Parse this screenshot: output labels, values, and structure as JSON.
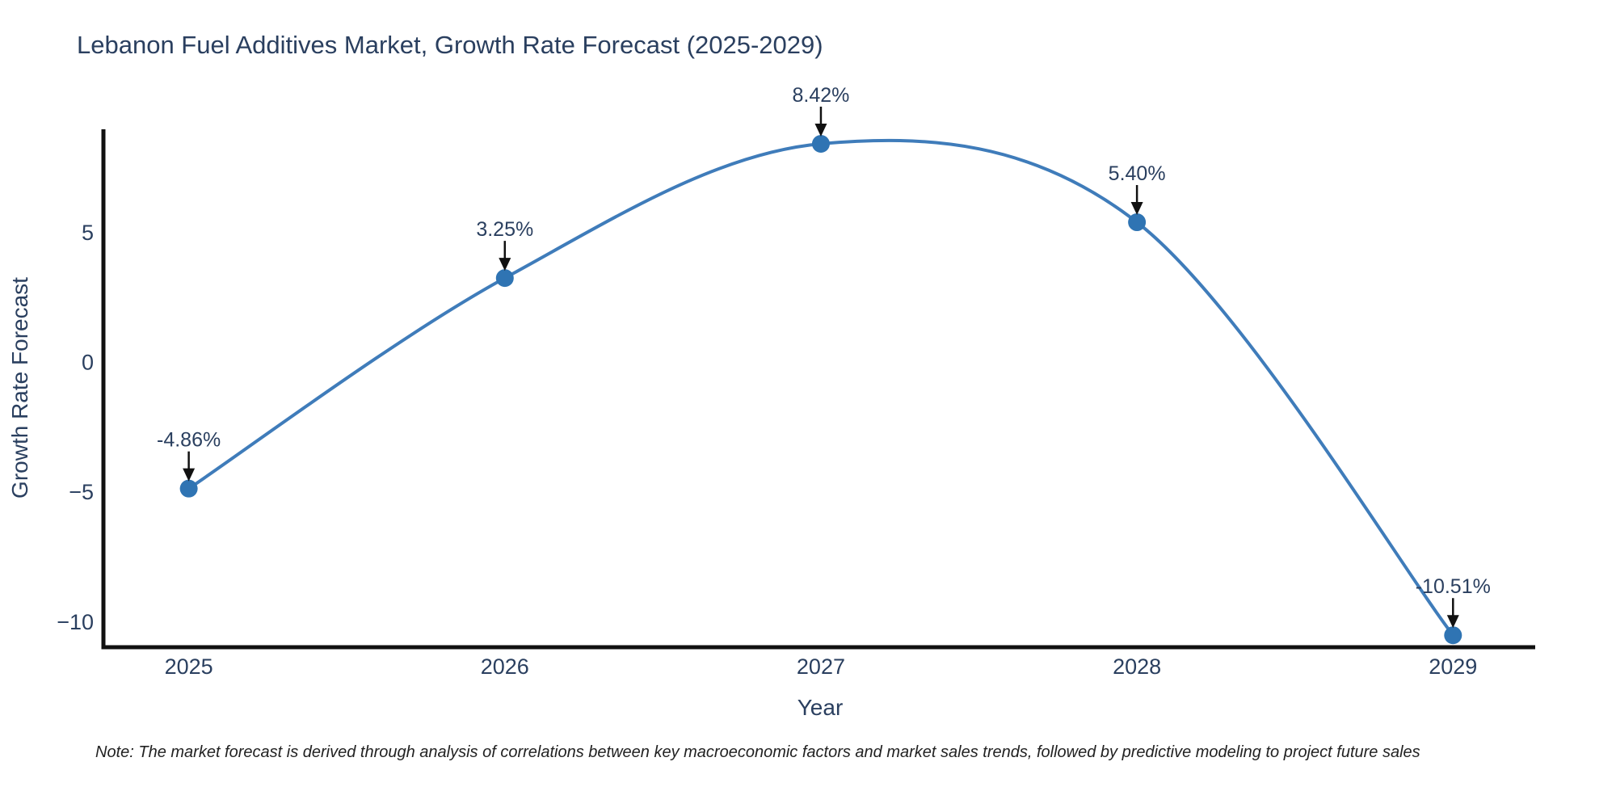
{
  "title": "Lebanon Fuel Additives Market, Growth Rate Forecast (2025-2029)",
  "note": "Note: The market forecast is derived through analysis of correlations between key macroeconomic factors and market sales trends, followed by predictive modeling to project future sales",
  "chart_data": {
    "type": "line",
    "line_shape": "spline",
    "title": "Lebanon Fuel Additives Market, Growth Rate Forecast (2025-2029)",
    "xlabel": "Year",
    "ylabel": "Growth Rate Forecast",
    "x": [
      2025,
      2026,
      2027,
      2028,
      2029
    ],
    "y": [
      -4.86,
      3.25,
      8.42,
      5.4,
      -10.51
    ],
    "point_labels": [
      "-4.86%",
      "3.25%",
      "8.42%",
      "5.40%",
      "-10.51%"
    ],
    "xtick_labels": [
      "2025",
      "2026",
      "2027",
      "2028",
      "2029"
    ],
    "ytick_values": [
      5,
      0,
      -5,
      -10
    ],
    "ytick_labels": [
      "5",
      "0",
      "−5",
      "−10"
    ],
    "xlim": [
      2024.73,
      2029.26
    ],
    "ylim": [
      -10.97,
      8.98
    ],
    "grid": false,
    "legend": null,
    "colors": {
      "line": "#3f7cba",
      "marker": "#2f74b3",
      "axis": "#111111",
      "text": "#2a3f5f",
      "annotation_arrow": "#111111"
    }
  }
}
